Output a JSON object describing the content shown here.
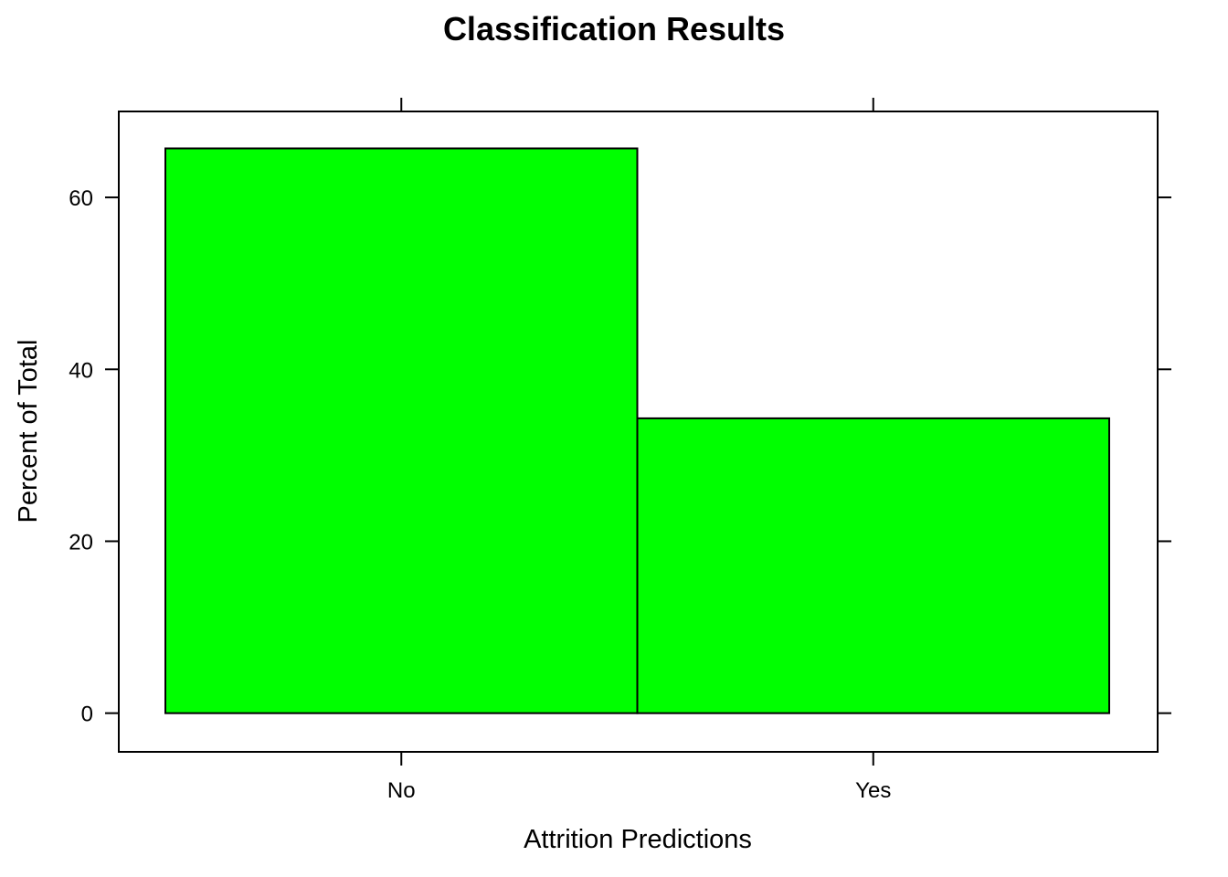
{
  "chart_data": {
    "type": "bar",
    "title": "Classification Results",
    "xlabel": "Attrition Predictions",
    "ylabel": "Percent of Total",
    "categories": [
      "No",
      "Yes"
    ],
    "values": [
      65.7,
      34.3
    ],
    "ylim": [
      -4.5,
      70
    ],
    "yticks": [
      0,
      20,
      40,
      60
    ],
    "bar_color": "#00ff00",
    "grid": false,
    "legend": "none"
  }
}
